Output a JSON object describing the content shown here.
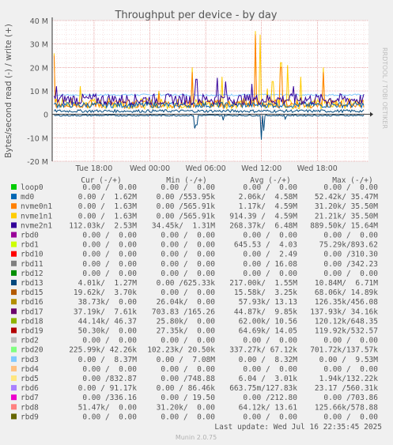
{
  "chart_data": {
    "type": "line",
    "title": "Throughput per device - by day",
    "ylabel": "Bytes/second read (-) / write (+)",
    "side_text": "RRDTOOL / TOBI OETIKER",
    "y_ticks": [
      "40 M",
      "30 M",
      "20 M",
      "10 M",
      "0",
      "-10 M",
      "-20 M"
    ],
    "ylim": [
      -20,
      40
    ],
    "y_unit": "M",
    "x_ticks": [
      {
        "label": "Tue 18:00",
        "h": 0
      },
      {
        "label": "Wed 00:00",
        "h": 6
      },
      {
        "label": "Wed 06:00",
        "h": 12
      },
      {
        "label": "Wed 12:00",
        "h": 18
      },
      {
        "label": "Wed 18:00",
        "h": 24
      }
    ],
    "xlim_hours": [
      -4.5,
      29.5
    ],
    "legend_headers": [
      "Cur (-/+)",
      "Min (-/+)",
      "Avg (-/+)",
      "Max (-/+)"
    ],
    "legend": [
      {
        "name": "loop0",
        "color": "#00cc00",
        "cur": "0.00 /  0.00",
        "min": "0.00 /  0.00",
        "avg": "0.00 /  0.00",
        "max": "0.00 /  0.00"
      },
      {
        "name": "md0",
        "color": "#0066b3",
        "cur": "0.00 /  1.62M",
        "min": "0.00 /553.95k",
        "avg": "2.06k/  4.58M",
        "max": "52.42k/ 35.47M"
      },
      {
        "name": "nvme0n1",
        "color": "#ff8000",
        "cur": "0.00 /  1.63M",
        "min": "0.00 /565.91k",
        "avg": "1.17k/  4.59M",
        "max": "31.20k/ 35.50M"
      },
      {
        "name": "nvme1n1",
        "color": "#ffcc00",
        "cur": "0.00 /  1.63M",
        "min": "0.00 /565.91k",
        "avg": "914.39 /  4.59M",
        "max": "21.21k/ 35.50M"
      },
      {
        "name": "nvme2n1",
        "color": "#330099",
        "cur": "112.03k/  2.53M",
        "min": "34.45k/  1.31M",
        "avg": "268.37k/  6.48M",
        "max": "889.50k/ 15.64M"
      },
      {
        "name": "rbd0",
        "color": "#990099",
        "cur": "0.00 /  0.00",
        "min": "0.00 /  0.00",
        "avg": "0.00 /  0.00",
        "max": "0.00 /  0.00"
      },
      {
        "name": "rbd1",
        "color": "#ccff00",
        "cur": "0.00 /  0.00",
        "min": "0.00 /  0.00",
        "avg": "645.53 /  4.03",
        "max": "75.29k/893.62"
      },
      {
        "name": "rbd10",
        "color": "#ff0000",
        "cur": "0.00 /  0.00",
        "min": "0.00 /  0.00",
        "avg": "0.00 /  2.49",
        "max": "0.00 /310.30"
      },
      {
        "name": "rbd11",
        "color": "#808080",
        "cur": "0.00 /  0.00",
        "min": "0.00 /  0.00",
        "avg": "0.00 / 16.08",
        "max": "0.00 /342.23"
      },
      {
        "name": "rbd12",
        "color": "#008f00",
        "cur": "0.00 /  0.00",
        "min": "0.00 /  0.00",
        "avg": "0.00 /  0.00",
        "max": "0.00 /  0.00"
      },
      {
        "name": "rbd13",
        "color": "#00487d",
        "cur": "4.01k/  1.27M",
        "min": "0.00 /625.33k",
        "avg": "217.00k/  1.55M",
        "max": "10.84M/  6.71M"
      },
      {
        "name": "rbd15",
        "color": "#b35a00",
        "cur": "19.62k/  3.70k",
        "min": "0.00 /  0.00",
        "avg": "15.58k/  3.25k",
        "max": "68.06k/ 14.89k"
      },
      {
        "name": "rbd16",
        "color": "#b38f00",
        "cur": "38.73k/  0.00",
        "min": "26.04k/  0.00",
        "avg": "57.93k/ 13.13",
        "max": "126.35k/456.08"
      },
      {
        "name": "rbd17",
        "color": "#6b006b",
        "cur": "37.19k/  7.61k",
        "min": "703.83 /165.26",
        "avg": "44.87k/  9.85k",
        "max": "137.93k/ 34.16k"
      },
      {
        "name": "rbd18",
        "color": "#8fb300",
        "cur": "44.14k/ 46.37",
        "min": "25.80k/  0.00",
        "avg": "62.00k/ 10.56",
        "max": "120.12k/648.35"
      },
      {
        "name": "rbd19",
        "color": "#b30000",
        "cur": "50.30k/  0.00",
        "min": "27.35k/  0.00",
        "avg": "64.69k/ 14.05",
        "max": "119.92k/532.57"
      },
      {
        "name": "rbd2",
        "color": "#bebebe",
        "cur": "0.00 /  0.00",
        "min": "0.00 /  0.00",
        "avg": "0.00 /  0.00",
        "max": "0.00 /  0.00"
      },
      {
        "name": "rbd20",
        "color": "#80ff80",
        "cur": "225.99k/ 42.26k",
        "min": "102.23k/ 20.50k",
        "avg": "337.27k/ 67.12k",
        "max": "701.72k/137.57k"
      },
      {
        "name": "rbd3",
        "color": "#80c9ff",
        "cur": "0.00 /  8.37M",
        "min": "0.00 /  7.08M",
        "avg": "0.00 /  8.32M",
        "max": "0.00 /  9.53M"
      },
      {
        "name": "rbd4",
        "color": "#ffc080",
        "cur": "0.00 /  0.00",
        "min": "0.00 /  0.00",
        "avg": "0.00 /  0.00",
        "max": "0.00 /  0.00"
      },
      {
        "name": "rbd5",
        "color": "#ffe680",
        "cur": "0.00 /832.87",
        "min": "0.00 /748.88",
        "avg": "6.04 /  3.01k",
        "max": "1.94k/132.22k"
      },
      {
        "name": "rbd6",
        "color": "#aa80ff",
        "cur": "0.00 / 91.17k",
        "min": "0.00 / 86.46k",
        "avg": "663.75m/127.83k",
        "max": "23.17 /560.31k"
      },
      {
        "name": "rbd7",
        "color": "#ee00cc",
        "cur": "0.00 /336.16",
        "min": "0.00 / 19.50",
        "avg": "0.00 /212.80",
        "max": "0.00 /703.86"
      },
      {
        "name": "rbd8",
        "color": "#ff8080",
        "cur": "51.47k/  0.00",
        "min": "31.20k/  0.00",
        "avg": "64.12k/ 13.61",
        "max": "125.66k/578.88"
      },
      {
        "name": "rbd9",
        "color": "#666600",
        "cur": "0.00 /  0.00",
        "min": "0.00 /  0.00",
        "avg": "0.00 /  0.00",
        "max": "0.00 /  0.00"
      }
    ],
    "series": [
      {
        "ref": "rbd3",
        "color": "#80c9ff",
        "base": 8.3,
        "noise": 0.4,
        "spikes": []
      },
      {
        "ref": "nvme1n1",
        "color": "#ffcc00",
        "base": 4.6,
        "noise": 2.2,
        "spikes": [
          [
            -4.3,
            26
          ],
          [
            -1.5,
            12
          ],
          [
            7.0,
            10
          ],
          [
            10.5,
            20
          ],
          [
            13.8,
            16
          ],
          [
            17.3,
            35.5
          ],
          [
            17.8,
            34
          ],
          [
            18.6,
            11
          ],
          [
            20.1,
            22
          ],
          [
            20.8,
            21
          ],
          [
            22.2,
            16
          ],
          [
            24.6,
            20
          ],
          [
            19.2,
            14
          ]
        ]
      },
      {
        "ref": "nvme0n1",
        "color": "#ff8000",
        "base": 4.4,
        "noise": 1.8,
        "spikes": [
          [
            -4.3,
            25
          ],
          [
            7.0,
            9
          ],
          [
            10.5,
            18
          ],
          [
            17.3,
            34
          ],
          [
            20.1,
            20
          ],
          [
            24.6,
            18
          ]
        ]
      },
      {
        "ref": "md0",
        "color": "#0066b3",
        "base": 4.0,
        "noise": 1.2,
        "spikes": []
      },
      {
        "ref": "nvme2n1",
        "color": "#330099",
        "base": 6.4,
        "noise": 2.4,
        "spikes": [
          [
            -4.0,
            12
          ],
          [
            11.0,
            15
          ],
          [
            13.3,
            15.6
          ],
          [
            14.2,
            14
          ],
          [
            17.0,
            13
          ],
          [
            21.5,
            12
          ]
        ]
      },
      {
        "ref": "rbd13",
        "color": "#00487d",
        "base": 1.4,
        "noise": 0.6,
        "spikes": []
      },
      {
        "ref": "rbd13_read",
        "color": "#00487d",
        "base": -0.5,
        "noise": 0.3,
        "spikes": [
          [
            10.8,
            -6.0
          ],
          [
            11.0,
            -4.5
          ],
          [
            13.9,
            -2.5
          ],
          [
            18.0,
            -10.8
          ],
          [
            18.2,
            -7.0
          ],
          [
            20.5,
            -2.0
          ]
        ]
      }
    ],
    "footer_update": "Last update: Wed Jul 16 22:35:45 2025",
    "footer_version": "Munin 2.0.75"
  }
}
